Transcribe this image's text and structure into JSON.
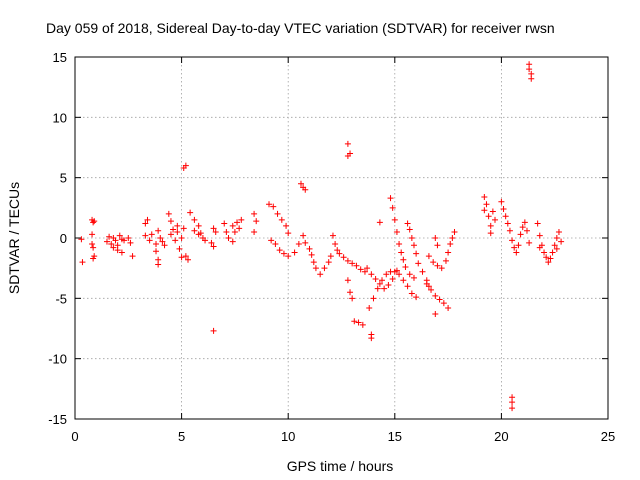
{
  "chart_data": {
    "type": "scatter",
    "title": "Day 059 of 2018, Sidereal Day-to-day VTEC variation (SDTVAR) for receiver rwsn",
    "xlabel": "GPS time / hours",
    "ylabel": "SDTVAR / TECUs",
    "xlim": [
      0,
      25
    ],
    "ylim": [
      -15,
      15
    ],
    "xticks": [
      "0",
      "5",
      "10",
      "15",
      "20",
      "25"
    ],
    "yticks": [
      "-15",
      "-10",
      "-5",
      "0",
      "5",
      "10",
      "15"
    ],
    "grid": true,
    "marker": "plus",
    "color": "#ff0000",
    "series": [
      {
        "name": "SDTVAR",
        "points": [
          [
            0.3,
            -0.1
          ],
          [
            0.35,
            -2.0
          ],
          [
            0.8,
            1.5
          ],
          [
            0.85,
            1.3
          ],
          [
            0.9,
            1.4
          ],
          [
            0.8,
            -0.5
          ],
          [
            0.85,
            -0.8
          ],
          [
            0.9,
            -1.5
          ],
          [
            0.85,
            -1.7
          ],
          [
            0.8,
            0.3
          ],
          [
            1.5,
            -0.3
          ],
          [
            1.6,
            0.1
          ],
          [
            1.7,
            -0.5
          ],
          [
            1.8,
            0.0
          ],
          [
            1.9,
            -0.2
          ],
          [
            2.0,
            -0.6
          ],
          [
            2.1,
            0.2
          ],
          [
            2.2,
            -0.1
          ],
          [
            2.3,
            -0.2
          ],
          [
            1.8,
            -0.8
          ],
          [
            2.0,
            -1.0
          ],
          [
            2.2,
            -1.2
          ],
          [
            2.5,
            0.0
          ],
          [
            2.6,
            -0.4
          ],
          [
            2.7,
            -1.5
          ],
          [
            3.3,
            1.2
          ],
          [
            3.4,
            1.5
          ],
          [
            3.3,
            0.2
          ],
          [
            3.5,
            -0.2
          ],
          [
            3.6,
            0.3
          ],
          [
            3.8,
            -0.5
          ],
          [
            3.9,
            0.6
          ],
          [
            4.0,
            0.0
          ],
          [
            4.1,
            -0.3
          ],
          [
            3.8,
            -1.1
          ],
          [
            3.9,
            -1.8
          ],
          [
            3.9,
            -2.2
          ],
          [
            4.2,
            -0.6
          ],
          [
            4.4,
            2.0
          ],
          [
            4.5,
            1.4
          ],
          [
            4.5,
            0.3
          ],
          [
            4.6,
            0.7
          ],
          [
            4.7,
            -0.2
          ],
          [
            4.8,
            0.5
          ],
          [
            4.8,
            1.0
          ],
          [
            4.9,
            -0.9
          ],
          [
            5.0,
            -1.6
          ],
          [
            5.0,
            0.0
          ],
          [
            5.1,
            0.8
          ],
          [
            5.2,
            6.0
          ],
          [
            5.1,
            5.8
          ],
          [
            5.2,
            -1.5
          ],
          [
            5.3,
            -1.8
          ],
          [
            5.4,
            2.1
          ],
          [
            5.6,
            1.5
          ],
          [
            5.8,
            1.0
          ],
          [
            5.9,
            0.4
          ],
          [
            6.0,
            0.0
          ],
          [
            6.1,
            -0.2
          ],
          [
            5.6,
            0.6
          ],
          [
            5.8,
            0.3
          ],
          [
            6.5,
            0.8
          ],
          [
            6.6,
            0.5
          ],
          [
            6.4,
            -0.4
          ],
          [
            6.5,
            -0.7
          ],
          [
            6.5,
            -7.7
          ],
          [
            7.0,
            1.2
          ],
          [
            7.1,
            0.5
          ],
          [
            7.2,
            0.0
          ],
          [
            7.4,
            -0.3
          ],
          [
            7.5,
            0.5
          ],
          [
            7.6,
            1.3
          ],
          [
            7.7,
            0.8
          ],
          [
            7.8,
            1.5
          ],
          [
            7.4,
            1.0
          ],
          [
            8.4,
            2.0
          ],
          [
            8.5,
            1.4
          ],
          [
            8.4,
            0.5
          ],
          [
            9.1,
            2.8
          ],
          [
            9.3,
            2.6
          ],
          [
            9.5,
            2.0
          ],
          [
            9.7,
            1.5
          ],
          [
            9.9,
            1.0
          ],
          [
            10.0,
            0.4
          ],
          [
            9.2,
            -0.2
          ],
          [
            9.4,
            -0.5
          ],
          [
            9.6,
            -1.0
          ],
          [
            9.8,
            -1.3
          ],
          [
            10.0,
            -1.5
          ],
          [
            10.3,
            -1.2
          ],
          [
            10.5,
            -0.5
          ],
          [
            10.7,
            0.2
          ],
          [
            10.8,
            -0.4
          ],
          [
            11.0,
            -0.9
          ],
          [
            11.1,
            -1.4
          ],
          [
            11.2,
            -2.0
          ],
          [
            11.3,
            -2.5
          ],
          [
            10.6,
            4.5
          ],
          [
            10.7,
            4.2
          ],
          [
            10.8,
            4.0
          ],
          [
            11.5,
            -3.0
          ],
          [
            11.7,
            -2.5
          ],
          [
            11.9,
            -2.0
          ],
          [
            12.0,
            -1.5
          ],
          [
            12.1,
            0.2
          ],
          [
            12.2,
            -0.5
          ],
          [
            12.3,
            -1.0
          ],
          [
            12.4,
            -1.3
          ],
          [
            12.6,
            -1.6
          ],
          [
            12.8,
            -1.9
          ],
          [
            13.0,
            -2.1
          ],
          [
            13.2,
            -2.3
          ],
          [
            13.4,
            -2.6
          ],
          [
            13.6,
            -2.8
          ],
          [
            12.8,
            -3.5
          ],
          [
            12.9,
            -4.5
          ],
          [
            13.0,
            -5.0
          ],
          [
            12.8,
            7.8
          ],
          [
            12.9,
            7.0
          ],
          [
            12.8,
            6.8
          ],
          [
            13.1,
            -6.9
          ],
          [
            13.3,
            -7.0
          ],
          [
            13.5,
            -7.2
          ],
          [
            13.9,
            -8.0
          ],
          [
            13.9,
            -8.3
          ],
          [
            13.8,
            -5.8
          ],
          [
            14.0,
            -5.0
          ],
          [
            14.2,
            -4.2
          ],
          [
            14.4,
            -3.5
          ],
          [
            14.6,
            -3.0
          ],
          [
            14.8,
            -2.8
          ],
          [
            15.0,
            -2.8
          ],
          [
            15.2,
            -3.0
          ],
          [
            15.4,
            -3.5
          ],
          [
            15.6,
            -4.0
          ],
          [
            15.8,
            -4.6
          ],
          [
            16.0,
            -4.9
          ],
          [
            13.7,
            -2.5
          ],
          [
            13.9,
            -3.0
          ],
          [
            14.1,
            -3.4
          ],
          [
            14.3,
            -3.8
          ],
          [
            14.5,
            -4.2
          ],
          [
            14.7,
            -3.9
          ],
          [
            14.9,
            -3.4
          ],
          [
            15.1,
            -2.7
          ],
          [
            14.3,
            1.3
          ],
          [
            14.8,
            3.3
          ],
          [
            14.9,
            2.5
          ],
          [
            15.0,
            1.5
          ],
          [
            15.1,
            0.5
          ],
          [
            15.2,
            -0.5
          ],
          [
            15.3,
            -1.2
          ],
          [
            15.4,
            -1.8
          ],
          [
            15.5,
            -2.4
          ],
          [
            15.7,
            -3.0
          ],
          [
            15.9,
            -3.3
          ],
          [
            15.6,
            1.2
          ],
          [
            15.7,
            0.7
          ],
          [
            15.8,
            0.0
          ],
          [
            15.9,
            -0.6
          ],
          [
            16.0,
            -1.3
          ],
          [
            16.1,
            -2.1
          ],
          [
            16.3,
            -2.8
          ],
          [
            16.5,
            -3.5
          ],
          [
            16.6,
            -4.0
          ],
          [
            16.5,
            -3.8
          ],
          [
            16.7,
            -4.3
          ],
          [
            16.9,
            -4.8
          ],
          [
            17.1,
            -5.1
          ],
          [
            17.3,
            -5.4
          ],
          [
            17.5,
            -5.8
          ],
          [
            16.9,
            -6.3
          ],
          [
            16.6,
            -1.5
          ],
          [
            16.8,
            -2.0
          ],
          [
            17.0,
            -2.3
          ],
          [
            17.2,
            -2.5
          ],
          [
            17.4,
            -1.9
          ],
          [
            17.5,
            -1.2
          ],
          [
            17.6,
            -0.5
          ],
          [
            17.7,
            0.0
          ],
          [
            17.8,
            0.5
          ],
          [
            16.9,
            0.0
          ],
          [
            17.0,
            -0.6
          ],
          [
            19.2,
            3.4
          ],
          [
            19.3,
            2.8
          ],
          [
            19.2,
            2.3
          ],
          [
            19.4,
            1.8
          ],
          [
            19.5,
            1.0
          ],
          [
            19.5,
            0.4
          ],
          [
            19.7,
            1.5
          ],
          [
            19.6,
            2.2
          ],
          [
            20.0,
            3.0
          ],
          [
            20.1,
            2.4
          ],
          [
            20.2,
            1.8
          ],
          [
            20.3,
            1.2
          ],
          [
            20.4,
            0.6
          ],
          [
            20.5,
            -0.2
          ],
          [
            20.6,
            -0.8
          ],
          [
            20.7,
            -1.2
          ],
          [
            20.8,
            -0.6
          ],
          [
            20.9,
            0.3
          ],
          [
            21.0,
            0.9
          ],
          [
            21.1,
            1.3
          ],
          [
            21.2,
            0.6
          ],
          [
            21.3,
            -0.4
          ],
          [
            20.5,
            -13.2
          ],
          [
            20.5,
            -13.6
          ],
          [
            20.5,
            -14.1
          ],
          [
            21.3,
            14.4
          ],
          [
            21.3,
            14.0
          ],
          [
            21.4,
            13.6
          ],
          [
            21.4,
            13.2
          ],
          [
            21.7,
            1.2
          ],
          [
            21.8,
            0.2
          ],
          [
            21.9,
            -0.6
          ],
          [
            22.0,
            -1.2
          ],
          [
            22.1,
            -1.6
          ],
          [
            22.2,
            -2.0
          ],
          [
            22.3,
            -1.7
          ],
          [
            22.4,
            -1.2
          ],
          [
            22.5,
            -0.6
          ],
          [
            22.6,
            0.0
          ],
          [
            22.7,
            0.5
          ],
          [
            22.8,
            -0.3
          ],
          [
            22.6,
            -0.9
          ],
          [
            21.8,
            -0.8
          ]
        ]
      }
    ]
  }
}
